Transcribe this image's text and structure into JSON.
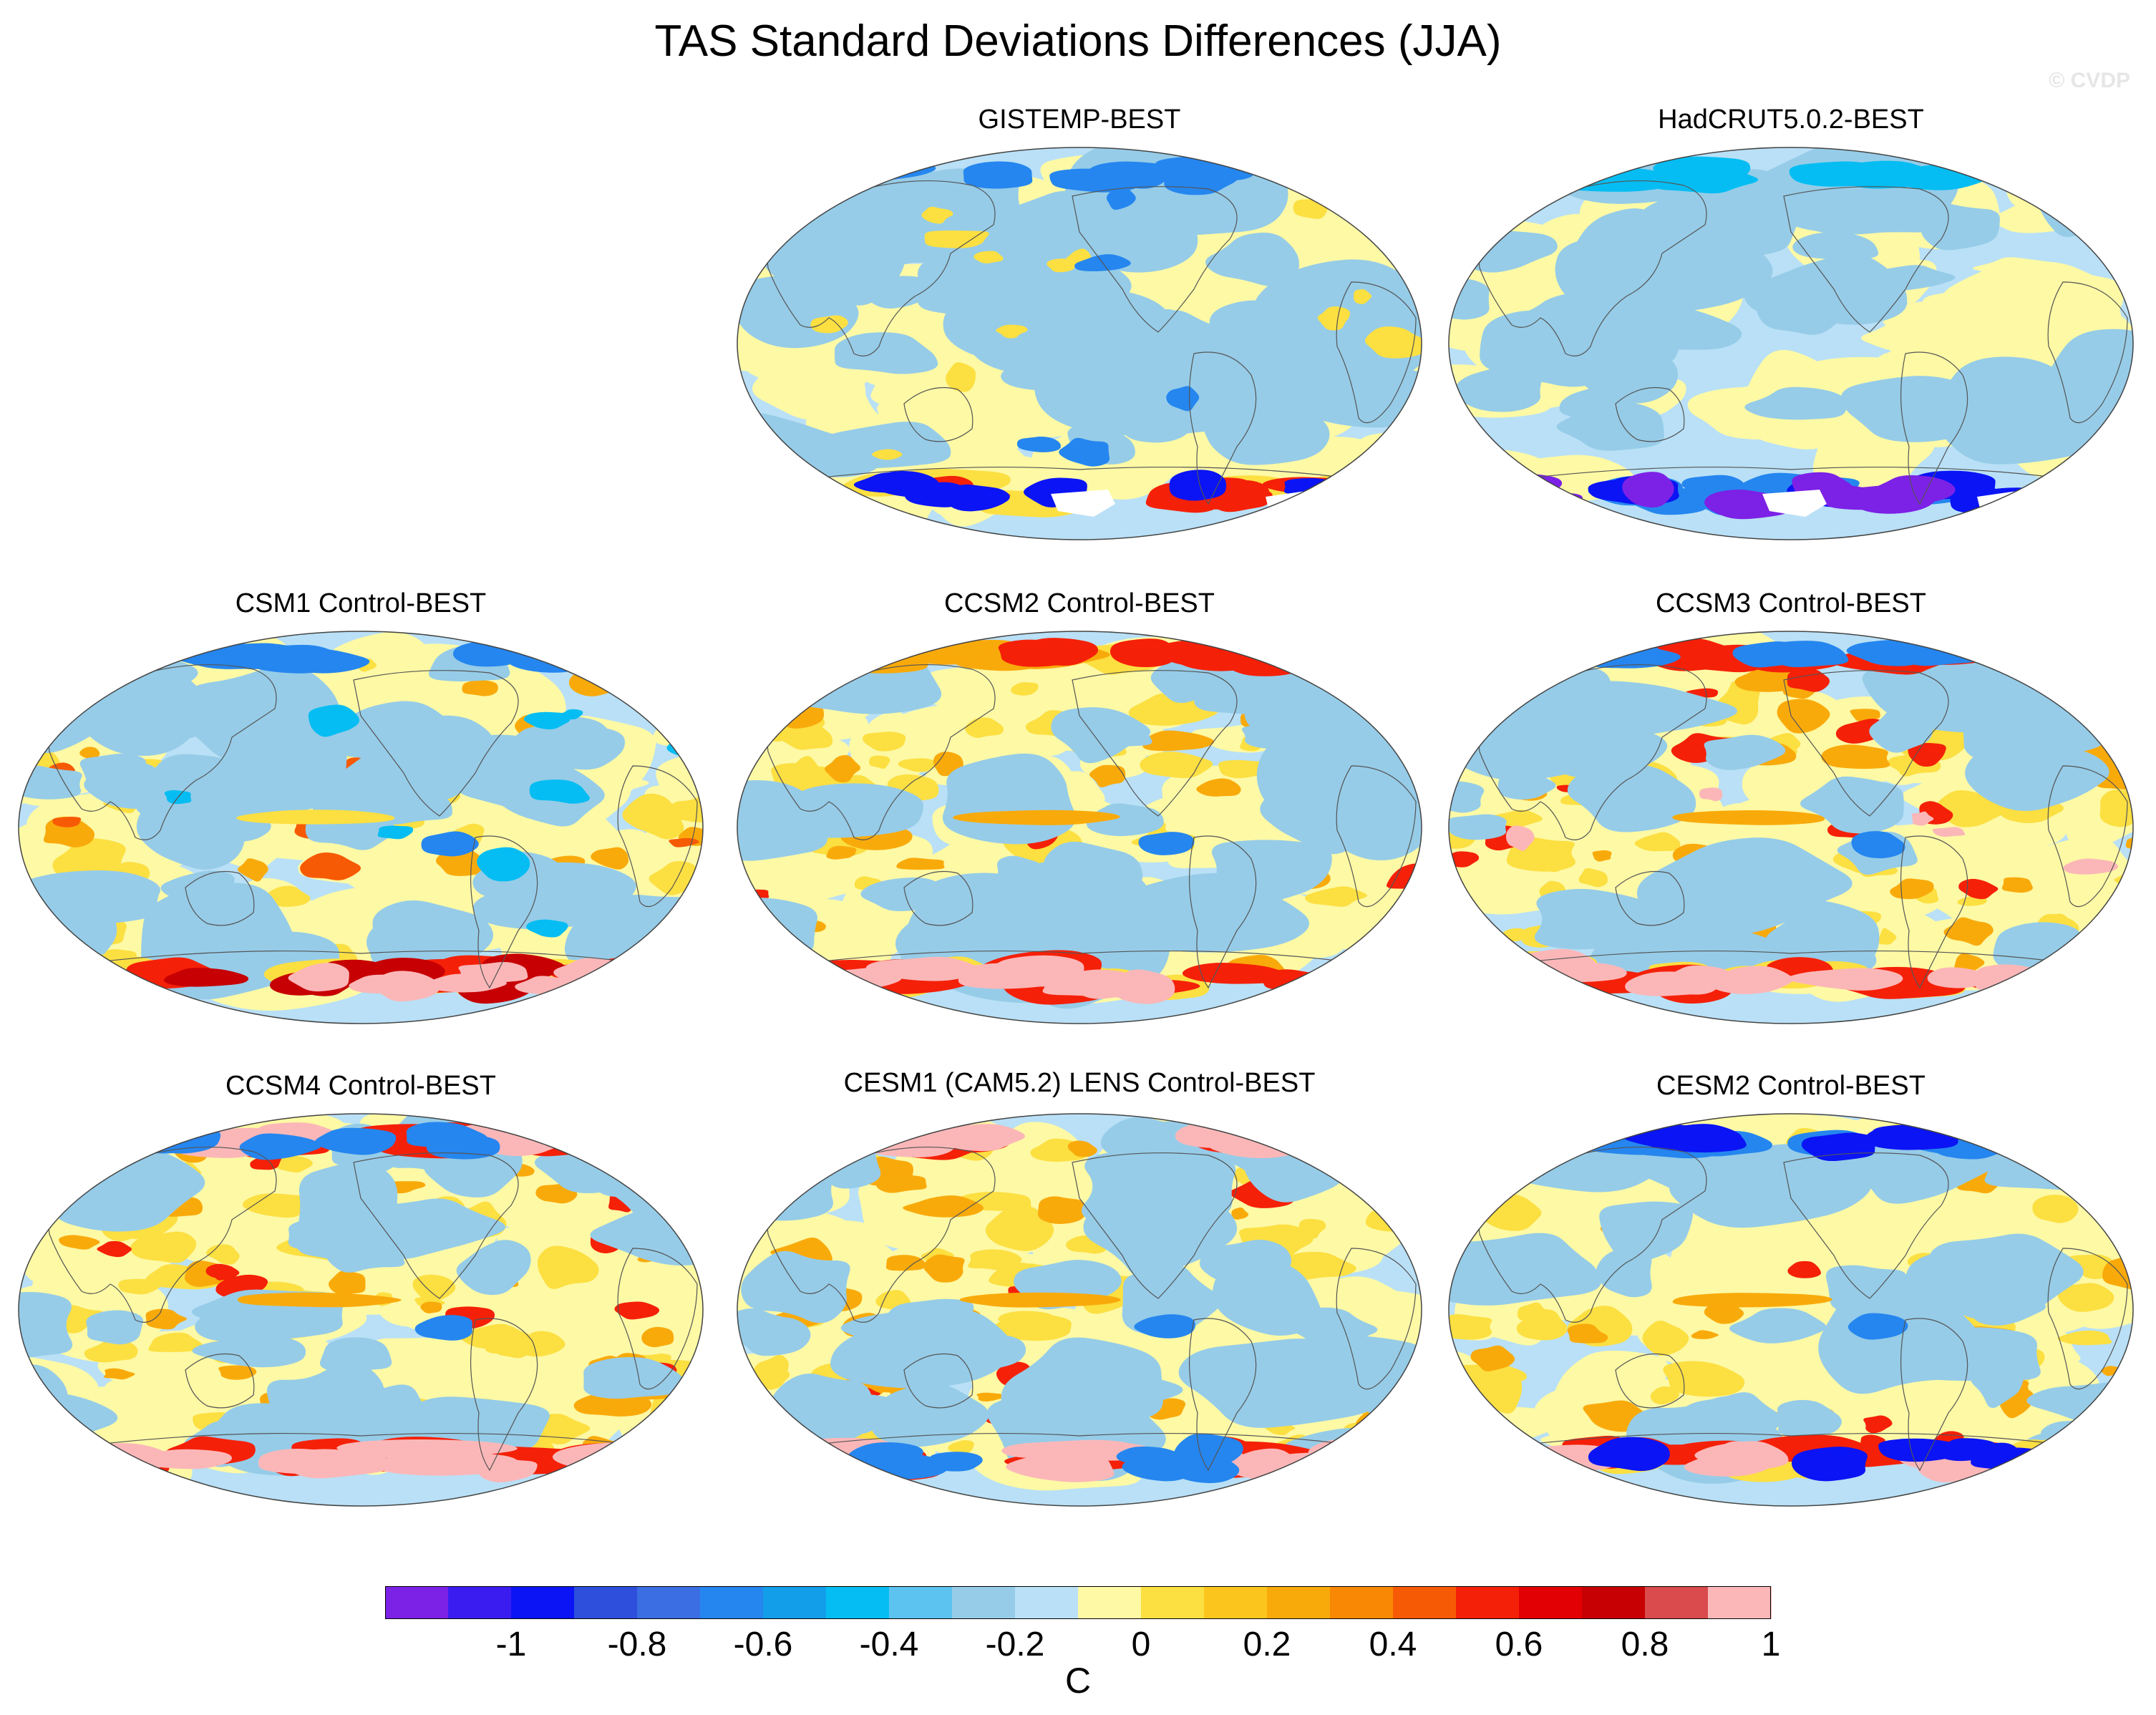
{
  "title": "TAS Standard Deviations Differences (JJA)",
  "credit": "© CVDP",
  "colorbar": {
    "unit": "C",
    "colors": [
      "#7c21e6",
      "#3a1cf0",
      "#0a14f4",
      "#2d4fdc",
      "#3b6ee3",
      "#2586ef",
      "#139ee9",
      "#05bdf2",
      "#5cc2ef",
      "#96cce8",
      "#b9e0f6",
      "#fdf9a5",
      "#fcdf41",
      "#fbc51d",
      "#f9aa0b",
      "#f98804",
      "#f75a04",
      "#f52008",
      "#e30004",
      "#c60003",
      "#d94b4d",
      "#fbb7b8"
    ],
    "tick_labels": [
      "-1",
      "-0.8",
      "-0.6",
      "-0.4",
      "-0.2",
      "0",
      "0.2",
      "0.4",
      "0.6",
      "0.8",
      "1"
    ]
  },
  "panels": [
    {
      "label": "GISTEMP-BEST",
      "style": "gistemp"
    },
    {
      "label": "HadCRUT5.0.2-BEST",
      "style": "hadcrut"
    },
    {
      "label": "CSM1 Control-BEST",
      "style": "csm1"
    },
    {
      "label": "CCSM2 Control-BEST",
      "style": "ccsm2"
    },
    {
      "label": "CCSM3 Control-BEST",
      "style": "ccsm3"
    },
    {
      "label": "CCSM4 Control-BEST",
      "style": "ccsm4"
    },
    {
      "label": "CESM1 (CAM5.2) LENS Control-BEST",
      "style": "cesm1"
    },
    {
      "label": "CESM2 Control-BEST",
      "style": "cesm2"
    }
  ]
}
